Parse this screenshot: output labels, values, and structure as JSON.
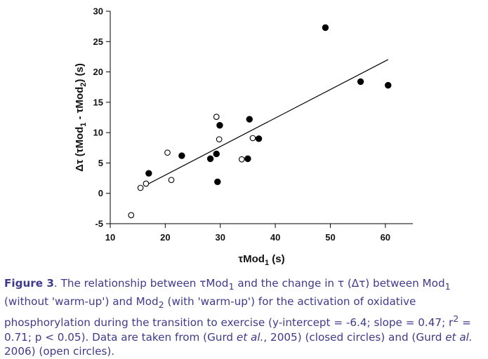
{
  "chart_data": {
    "type": "scatter",
    "xlabel_parts": {
      "sym": "τ",
      "main": "Mod",
      "sub": "1",
      "unit": " (s)"
    },
    "ylabel_parts": {
      "pre": "Δτ (τMod",
      "sub1": "1",
      "mid": " - τMod",
      "sub2": "2",
      "post": ") (s)"
    },
    "xlim": [
      10,
      65
    ],
    "ylim": [
      -5,
      30
    ],
    "xticks": [
      10,
      20,
      30,
      40,
      50,
      60
    ],
    "yticks": [
      -5,
      0,
      5,
      10,
      15,
      20,
      25,
      30
    ],
    "grid": false,
    "series": [
      {
        "marker": "filled-circle",
        "points": [
          [
            17,
            3.3
          ],
          [
            23,
            6.2
          ],
          [
            28.2,
            5.7
          ],
          [
            29.3,
            6.5
          ],
          [
            29.5,
            1.9
          ],
          [
            29.9,
            11.2
          ],
          [
            35,
            5.7
          ],
          [
            35.3,
            12.2
          ],
          [
            37,
            9
          ],
          [
            49.1,
            27.3
          ],
          [
            55.5,
            18.4
          ],
          [
            60.5,
            17.8
          ]
        ]
      },
      {
        "marker": "open-circle",
        "points": [
          [
            13.8,
            -3.6
          ],
          [
            15.5,
            0.9
          ],
          [
            16.5,
            1.6
          ],
          [
            20.4,
            6.7
          ],
          [
            21.1,
            2.2
          ],
          [
            29.3,
            12.6
          ],
          [
            29.8,
            8.9
          ],
          [
            33.9,
            5.6
          ],
          [
            35.9,
            9.1
          ]
        ]
      }
    ],
    "regression": {
      "x_range": [
        17,
        60.5
      ],
      "intercept": -6.4,
      "slope": 0.47
    }
  },
  "caption": {
    "label": "Figure 3",
    "t1": ".  The relationship between τMod",
    "s1": "1",
    "t2": " and the change in τ (Δτ) between Mod",
    "s2": "1",
    "t3": " (without 'warm-up') and Mod",
    "s3": "2",
    "t4": " (with 'warm-up') for the activation of oxidative phosphorylation during the transition to exercise (y-intercept = -6.4; slope = 0.47; r",
    "s4": "2",
    "t5": " = 0.71; p  < 0.05).  Data are taken from (Gurd ",
    "i1": "et al.",
    "t6": ", 2005) (closed circles) and (Gurd ",
    "i2": "et al.",
    "t7": " 2006) (open circles)."
  }
}
